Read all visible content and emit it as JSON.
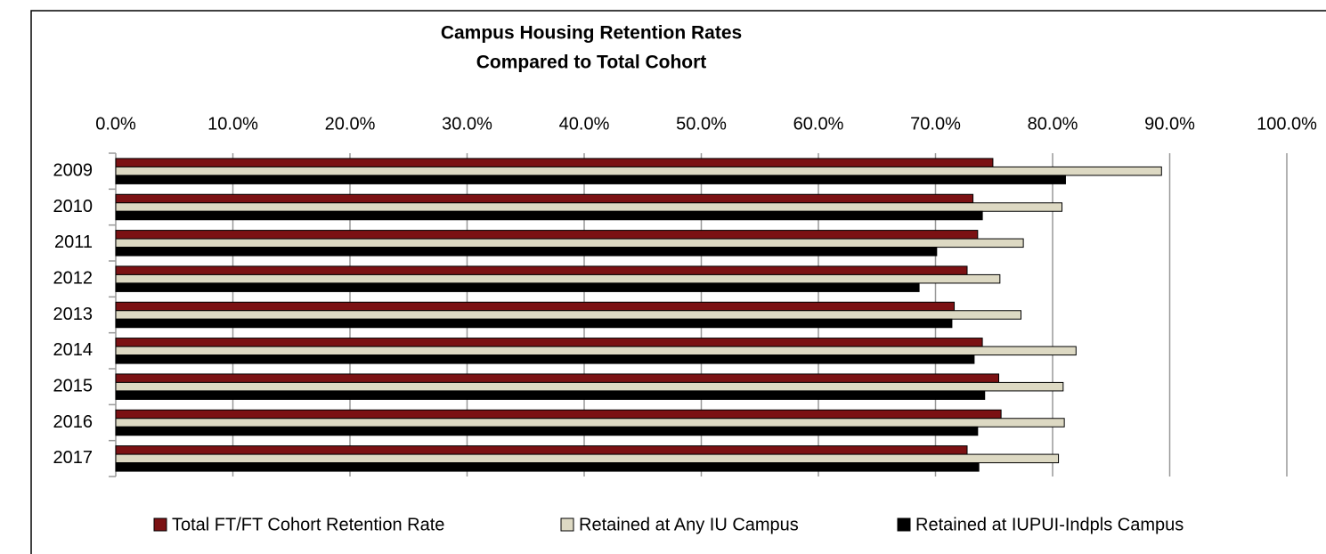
{
  "chart_data": {
    "type": "hbar",
    "title": "Campus Housing Retention Rates",
    "subtitle": "Compared to Total Cohort",
    "categories": [
      "2009",
      "2010",
      "2011",
      "2012",
      "2013",
      "2014",
      "2015",
      "2016",
      "2017"
    ],
    "series": [
      {
        "name": "Total FT/FT Cohort Retention Rate",
        "color": "#7b1113",
        "values": [
          74.9,
          73.2,
          73.6,
          72.7,
          71.6,
          74.0,
          75.4,
          75.6,
          72.7
        ]
      },
      {
        "name": "Retained at Any IU Campus",
        "color": "#ddd9c3",
        "values": [
          89.3,
          80.8,
          77.5,
          75.5,
          77.3,
          82.0,
          80.9,
          81.0,
          80.5
        ]
      },
      {
        "name": "Retained at IUPUI-Indpls Campus",
        "color": "#000000",
        "values": [
          81.1,
          74.0,
          70.1,
          68.6,
          71.4,
          73.3,
          74.2,
          73.6,
          73.7
        ]
      }
    ],
    "xlim": [
      0,
      100
    ],
    "xticks": [
      {
        "value": 0,
        "label": "0.0%"
      },
      {
        "value": 10,
        "label": "10.0%"
      },
      {
        "value": 20,
        "label": "20.0%"
      },
      {
        "value": 30,
        "label": "30.0%"
      },
      {
        "value": 40,
        "label": "40.0%"
      },
      {
        "value": 50,
        "label": "50.0%"
      },
      {
        "value": 60,
        "label": "60.0%"
      },
      {
        "value": 70,
        "label": "70.0%"
      },
      {
        "value": 80,
        "label": "80.0%"
      },
      {
        "value": 90,
        "label": "90.0%"
      },
      {
        "value": 100,
        "label": "100.0%"
      }
    ],
    "grid": true,
    "legend": "bottom"
  }
}
